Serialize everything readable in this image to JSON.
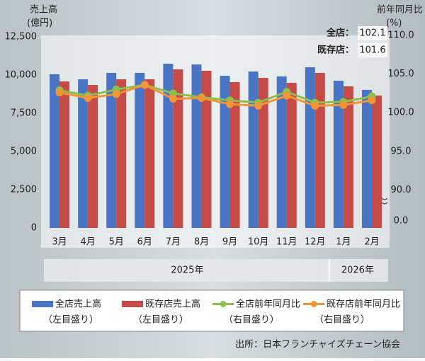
{
  "chart_data": {
    "type": "bar_line",
    "y_label": "売上高",
    "y_unit": "(億円)",
    "y2_label": "前年同月比",
    "y2_unit": "(%)",
    "categories": [
      "3月",
      "4月",
      "5月",
      "6月",
      "7月",
      "8月",
      "9月",
      "10月",
      "11月",
      "12月",
      "1月",
      "2月"
    ],
    "x_groups": [
      {
        "label": "2025年",
        "size": 10
      },
      {
        "label": "2026年",
        "size": 2
      }
    ],
    "ylim": [
      0,
      12500
    ],
    "yticks": [
      0,
      {
        "value": 2500,
        "label": "2,500"
      },
      {
        "value": 5000,
        "label": "5,000"
      },
      {
        "value": 7500,
        "label": "7,500"
      },
      {
        "value": 10000,
        "label": "10,000"
      },
      {
        "value": 12500,
        "label": "12,500"
      }
    ],
    "y2lim": [
      0,
      110
    ],
    "y2_break": [
      0,
      86
    ],
    "y2ticks": [
      {
        "value": 0,
        "label": "0.0"
      },
      {
        "value": 90,
        "label": "90.0"
      },
      {
        "value": 95,
        "label": "95.0"
      },
      {
        "value": 100,
        "label": "100.0"
      },
      {
        "value": 105,
        "label": "105.0"
      },
      {
        "value": 110,
        "label": "110.0"
      }
    ],
    "series": [
      {
        "name": "全店売上高",
        "note": "（左目盛り）",
        "kind": "bar",
        "color": "#4a74c4",
        "values": [
          10050,
          9720,
          10140,
          10140,
          10740,
          10690,
          9950,
          10230,
          9910,
          10510,
          9630,
          9030
        ]
      },
      {
        "name": "既存店売上高",
        "note": "（左目盛り）",
        "kind": "bar",
        "color": "#c44b48",
        "values": [
          9580,
          9350,
          9720,
          9720,
          10370,
          10280,
          9540,
          9810,
          9490,
          10140,
          9260,
          8660
        ]
      },
      {
        "name": "全店前年同月比",
        "note": "（右目盛り）",
        "kind": "line",
        "axis": "y2",
        "color": "#8cbf4c",
        "label_prefix": "全店：",
        "values": [
          102.9,
          102.2,
          103.0,
          103.6,
          102.5,
          102.0,
          101.6,
          101.3,
          102.7,
          101.3,
          101.4,
          102.1
        ]
      },
      {
        "name": "既存店前年同月比",
        "note": "（右目盛り）",
        "kind": "line",
        "axis": "y2",
        "color": "#f19638",
        "label_prefix": "既存店：",
        "values": [
          102.6,
          101.9,
          102.4,
          103.6,
          101.8,
          101.9,
          101.1,
          100.9,
          102.2,
          100.9,
          101.0,
          101.6
        ]
      }
    ],
    "source": "出所：日本フランチャイズチェーン協会"
  }
}
